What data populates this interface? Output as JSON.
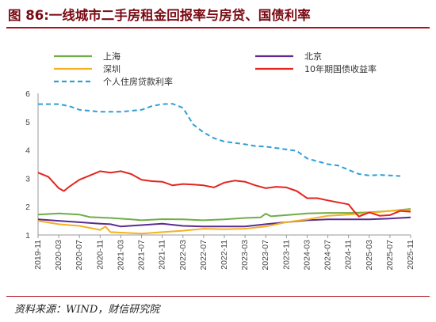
{
  "figure": {
    "title": "图 86:一线城市二手房租金回报率与房贷、国债利率",
    "source": "资料来源：WIND，财信研究院"
  },
  "chart_data": {
    "type": "line",
    "title": "",
    "xlabel": "",
    "ylabel": "",
    "ylim": [
      1,
      6
    ],
    "yticks": [
      1,
      2,
      3,
      4,
      5,
      6
    ],
    "grid": false,
    "legend_position": "top",
    "x_ticks": [
      "2019-11",
      "2020-03",
      "2020-07",
      "2020-11",
      "2021-03",
      "2021-07",
      "2021-11",
      "2022-03",
      "2022-07",
      "2022-11",
      "2023-03",
      "2023-07",
      "2023-11",
      "2024-03",
      "2024-07",
      "2024-11",
      "2025-03",
      "2025-07",
      "2025-11"
    ],
    "series": [
      {
        "name": "上海",
        "color": "#70ad47",
        "style": "solid",
        "points": [
          [
            "2019-11",
            1.72
          ],
          [
            "2020-03",
            1.76
          ],
          [
            "2020-07",
            1.72
          ],
          [
            "2020-09",
            1.63
          ],
          [
            "2021-01",
            1.6
          ],
          [
            "2021-05",
            1.55
          ],
          [
            "2021-07",
            1.52
          ],
          [
            "2021-11",
            1.56
          ],
          [
            "2022-03",
            1.55
          ],
          [
            "2022-07",
            1.52
          ],
          [
            "2022-11",
            1.55
          ],
          [
            "2023-03",
            1.6
          ],
          [
            "2023-06",
            1.62
          ],
          [
            "2023-07",
            1.75
          ],
          [
            "2023-08",
            1.66
          ],
          [
            "2023-11",
            1.7
          ],
          [
            "2024-03",
            1.76
          ],
          [
            "2024-07",
            1.78
          ],
          [
            "2024-11",
            1.78
          ],
          [
            "2025-03",
            1.8
          ],
          [
            "2025-07",
            1.85
          ],
          [
            "2025-11",
            1.92
          ]
        ]
      },
      {
        "name": "北京",
        "color": "#5b2c91",
        "style": "solid",
        "points": [
          [
            "2019-11",
            1.55
          ],
          [
            "2020-03",
            1.5
          ],
          [
            "2020-07",
            1.45
          ],
          [
            "2020-11",
            1.4
          ],
          [
            "2021-01",
            1.38
          ],
          [
            "2021-03",
            1.3
          ],
          [
            "2021-07",
            1.35
          ],
          [
            "2021-11",
            1.4
          ],
          [
            "2022-03",
            1.32
          ],
          [
            "2022-07",
            1.3
          ],
          [
            "2022-11",
            1.3
          ],
          [
            "2023-03",
            1.3
          ],
          [
            "2023-07",
            1.38
          ],
          [
            "2023-11",
            1.45
          ],
          [
            "2024-03",
            1.52
          ],
          [
            "2024-07",
            1.55
          ],
          [
            "2024-11",
            1.55
          ],
          [
            "2025-03",
            1.55
          ],
          [
            "2025-07",
            1.58
          ],
          [
            "2025-11",
            1.62
          ]
        ]
      },
      {
        "name": "深圳",
        "color": "#f5b21f",
        "style": "solid",
        "points": [
          [
            "2019-11",
            1.5
          ],
          [
            "2020-03",
            1.38
          ],
          [
            "2020-07",
            1.32
          ],
          [
            "2020-11",
            1.18
          ],
          [
            "2020-12",
            1.3
          ],
          [
            "2021-01",
            1.1
          ],
          [
            "2021-07",
            1.05
          ],
          [
            "2021-11",
            1.1
          ],
          [
            "2022-03",
            1.15
          ],
          [
            "2022-07",
            1.22
          ],
          [
            "2022-11",
            1.2
          ],
          [
            "2023-03",
            1.22
          ],
          [
            "2023-07",
            1.3
          ],
          [
            "2023-11",
            1.45
          ],
          [
            "2024-03",
            1.55
          ],
          [
            "2024-07",
            1.68
          ],
          [
            "2024-11",
            1.72
          ],
          [
            "2025-03",
            1.78
          ],
          [
            "2025-07",
            1.85
          ],
          [
            "2025-11",
            1.88
          ]
        ]
      },
      {
        "name": "10年期国债收益率",
        "color": "#e3251d",
        "style": "solid",
        "points": [
          [
            "2019-11",
            3.2
          ],
          [
            "2020-01",
            3.05
          ],
          [
            "2020-03",
            2.65
          ],
          [
            "2020-04",
            2.55
          ],
          [
            "2020-05",
            2.7
          ],
          [
            "2020-07",
            2.95
          ],
          [
            "2020-09",
            3.1
          ],
          [
            "2020-11",
            3.25
          ],
          [
            "2021-01",
            3.2
          ],
          [
            "2021-03",
            3.25
          ],
          [
            "2021-05",
            3.15
          ],
          [
            "2021-07",
            2.95
          ],
          [
            "2021-09",
            2.9
          ],
          [
            "2021-11",
            2.88
          ],
          [
            "2022-01",
            2.75
          ],
          [
            "2022-03",
            2.8
          ],
          [
            "2022-05",
            2.78
          ],
          [
            "2022-07",
            2.75
          ],
          [
            "2022-09",
            2.68
          ],
          [
            "2022-11",
            2.85
          ],
          [
            "2023-01",
            2.92
          ],
          [
            "2023-03",
            2.88
          ],
          [
            "2023-05",
            2.75
          ],
          [
            "2023-07",
            2.65
          ],
          [
            "2023-09",
            2.7
          ],
          [
            "2023-11",
            2.68
          ],
          [
            "2024-01",
            2.55
          ],
          [
            "2024-03",
            2.3
          ],
          [
            "2024-05",
            2.3
          ],
          [
            "2024-07",
            2.22
          ],
          [
            "2024-09",
            2.15
          ],
          [
            "2024-11",
            2.08
          ],
          [
            "2024-12",
            1.85
          ],
          [
            "2025-01",
            1.65
          ],
          [
            "2025-03",
            1.8
          ],
          [
            "2025-05",
            1.68
          ],
          [
            "2025-07",
            1.7
          ],
          [
            "2025-09",
            1.85
          ],
          [
            "2025-11",
            1.82
          ]
        ]
      },
      {
        "name": "个人住房贷款利率",
        "color": "#2e9fd6",
        "style": "dashed",
        "points": [
          [
            "2019-11",
            5.62
          ],
          [
            "2020-03",
            5.62
          ],
          [
            "2020-05",
            5.55
          ],
          [
            "2020-07",
            5.42
          ],
          [
            "2020-11",
            5.35
          ],
          [
            "2021-03",
            5.35
          ],
          [
            "2021-07",
            5.42
          ],
          [
            "2021-09",
            5.55
          ],
          [
            "2021-11",
            5.62
          ],
          [
            "2022-01",
            5.63
          ],
          [
            "2022-03",
            5.49
          ],
          [
            "2022-05",
            4.9
          ],
          [
            "2022-07",
            4.62
          ],
          [
            "2022-09",
            4.42
          ],
          [
            "2022-11",
            4.3
          ],
          [
            "2023-03",
            4.2
          ],
          [
            "2023-05",
            4.14
          ],
          [
            "2023-07",
            4.12
          ],
          [
            "2023-11",
            4.02
          ],
          [
            "2024-01",
            3.97
          ],
          [
            "2024-03",
            3.7
          ],
          [
            "2024-07",
            3.5
          ],
          [
            "2024-09",
            3.45
          ],
          [
            "2024-11",
            3.3
          ],
          [
            "2025-01",
            3.15
          ],
          [
            "2025-03",
            3.1
          ],
          [
            "2025-05",
            3.12
          ],
          [
            "2025-07",
            3.1
          ],
          [
            "2025-09",
            3.08
          ]
        ]
      }
    ]
  }
}
